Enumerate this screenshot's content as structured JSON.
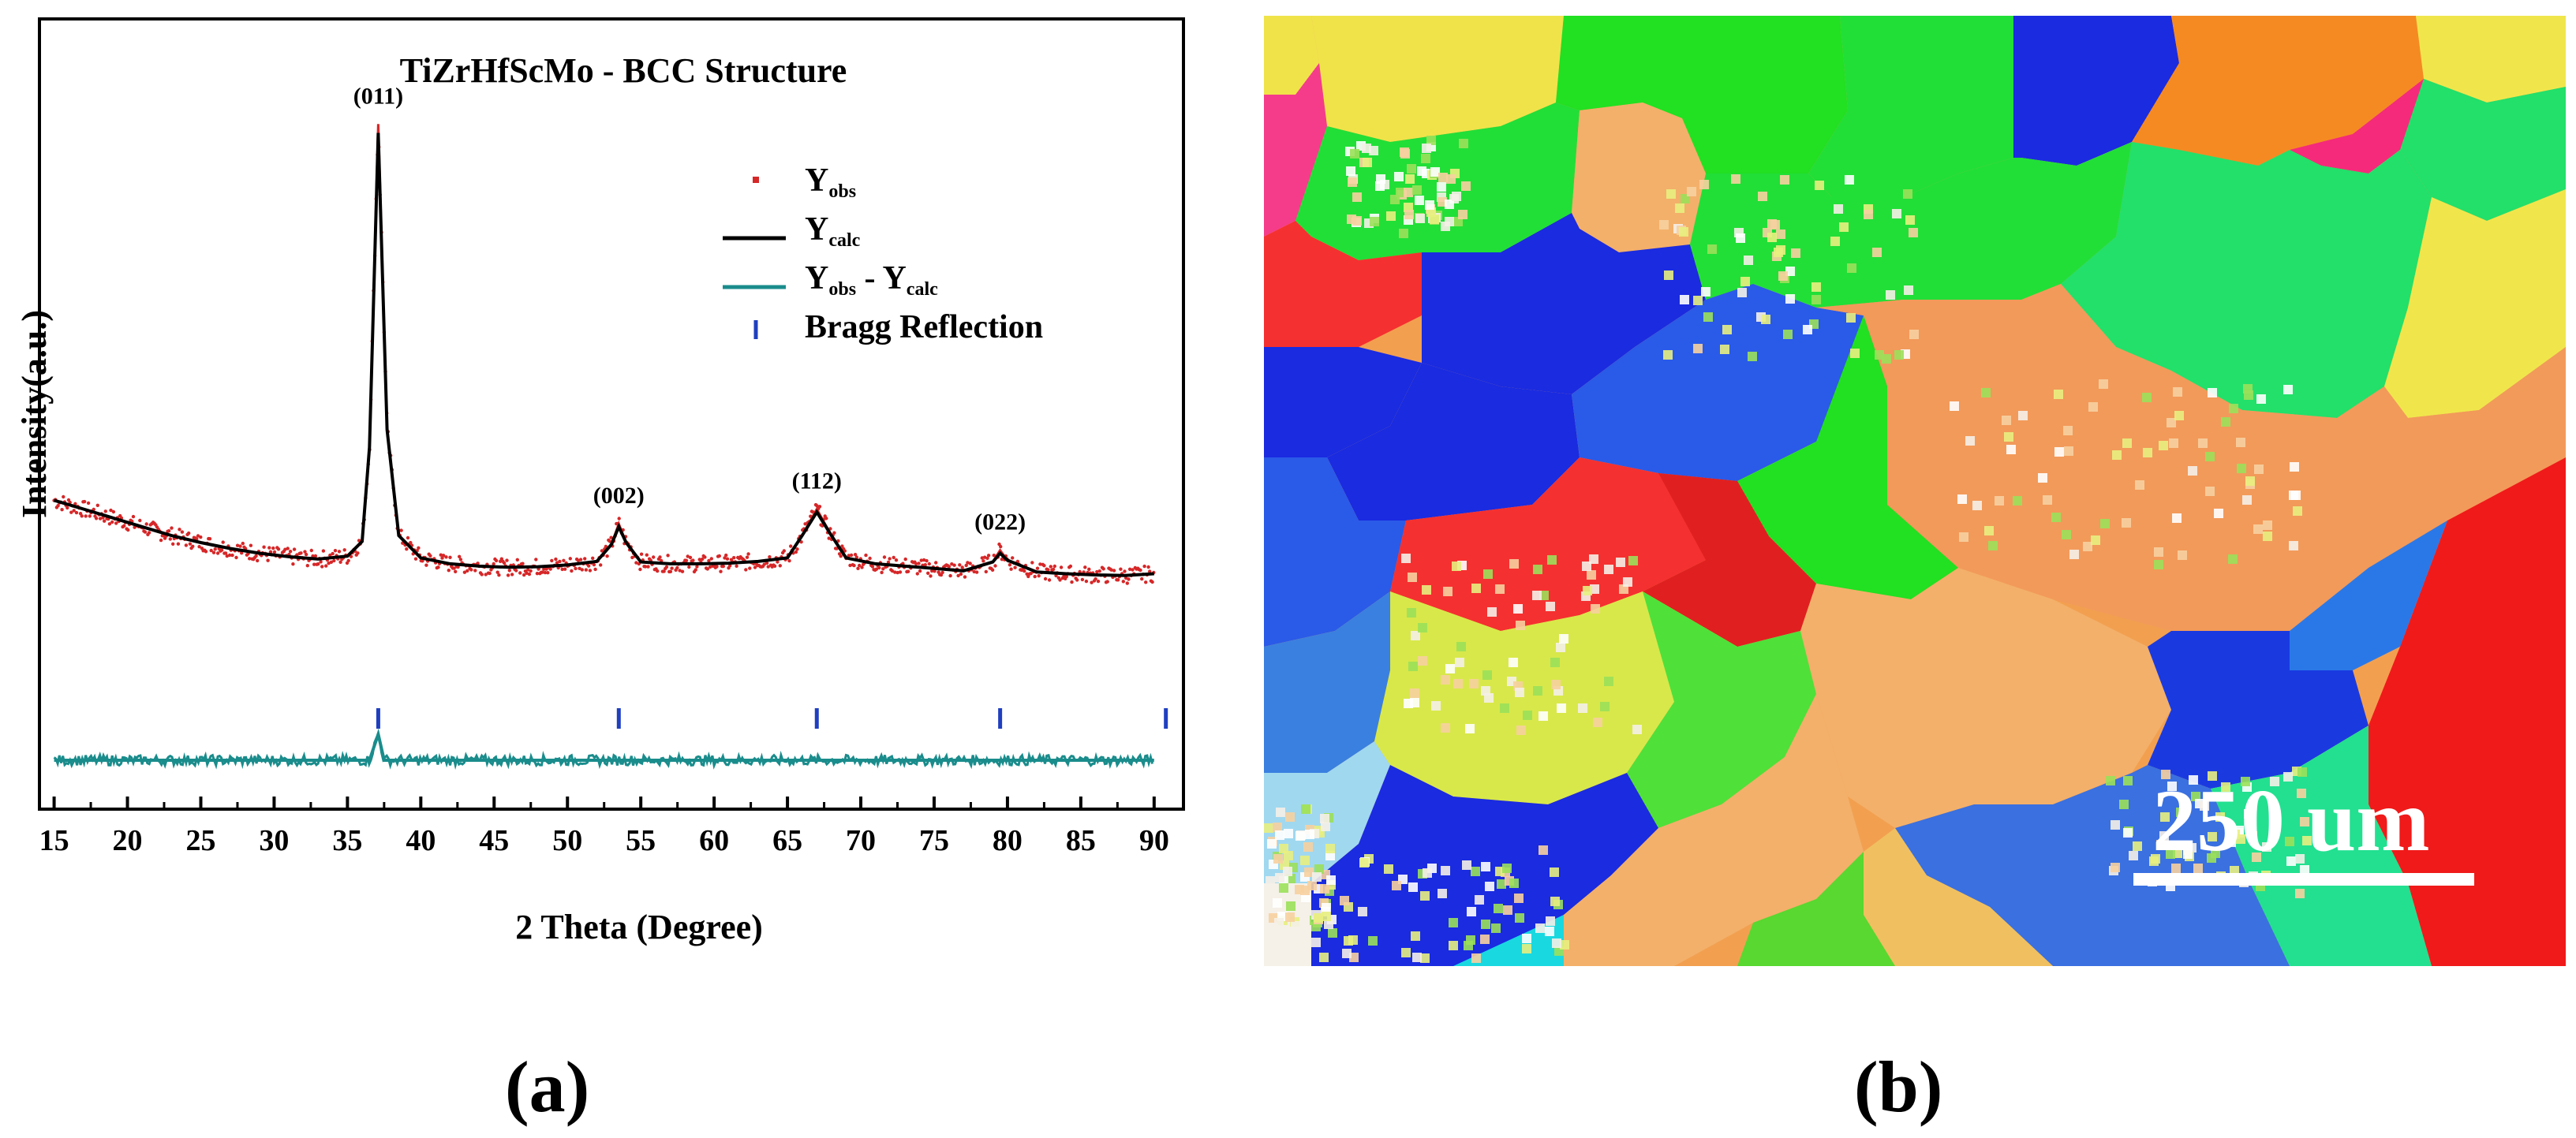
{
  "chart_data": {
    "type": "line",
    "title": "TiZrHfScMo - BCC Structure",
    "xlabel": "2 Theta (Degree)",
    "ylabel": "Intensity(a.u.)",
    "xlim": [
      14,
      92
    ],
    "ylim": [
      -50,
      1050
    ],
    "x_ticks": [
      15,
      20,
      25,
      30,
      35,
      40,
      45,
      50,
      55,
      60,
      65,
      70,
      75,
      80,
      85,
      90
    ],
    "legend": {
      "placement": "top-right",
      "entries": [
        {
          "main": "Y",
          "sub": "obs",
          "main2": "",
          "sub2": "",
          "symbol": "dot",
          "color": "#d62728"
        },
        {
          "main": "Y",
          "sub": "calc",
          "main2": "",
          "sub2": "",
          "symbol": "line",
          "color": "#000000"
        },
        {
          "main": "Y",
          "sub": "obs",
          "main2": " - Y",
          "sub2": "calc",
          "symbol": "line",
          "color": "#1a8c8c"
        },
        {
          "main": "Bragg Reflection",
          "sub": "",
          "main2": "",
          "sub2": "",
          "symbol": "tick",
          "color": "#1f3fbf"
        }
      ]
    },
    "peaks": [
      {
        "two_theta": 37.1,
        "intensity": 1000,
        "label": "(011)"
      },
      {
        "two_theta": 53.5,
        "intensity": 320,
        "label": "(002)"
      },
      {
        "two_theta": 67.0,
        "intensity": 345,
        "label": "(112)"
      },
      {
        "two_theta": 79.5,
        "intensity": 275,
        "label": "(022)"
      }
    ],
    "series": [
      {
        "name": "Y_obs",
        "x": [
          15,
          17,
          19,
          21,
          23,
          25,
          27,
          29,
          31,
          33,
          35,
          36,
          36.5,
          37.1,
          37.7,
          38.5,
          40,
          42,
          44,
          46,
          48,
          50,
          52,
          53,
          53.5,
          54,
          55,
          57,
          59,
          61,
          63,
          65,
          66,
          67,
          68,
          69,
          71,
          73,
          75,
          77,
          79,
          79.5,
          80,
          82,
          84,
          86,
          88,
          90
        ],
        "y": [
          360,
          345,
          330,
          315,
          300,
          288,
          278,
          270,
          264,
          260,
          265,
          290,
          450,
          1000,
          480,
          300,
          262,
          252,
          248,
          246,
          247,
          250,
          256,
          285,
          320,
          288,
          255,
          252,
          252,
          253,
          256,
          262,
          300,
          345,
          300,
          262,
          252,
          248,
          244,
          240,
          255,
          275,
          258,
          238,
          235,
          233,
          232,
          235
        ]
      },
      {
        "name": "Y_calc",
        "x": [
          15,
          17,
          19,
          21,
          23,
          25,
          27,
          29,
          31,
          33,
          35,
          36,
          36.5,
          37.1,
          37.7,
          38.5,
          40,
          42,
          44,
          46,
          48,
          50,
          52,
          53,
          53.5,
          54,
          55,
          57,
          59,
          61,
          63,
          65,
          66,
          67,
          68,
          69,
          71,
          73,
          75,
          77,
          79,
          79.5,
          80,
          82,
          84,
          86,
          88,
          90
        ],
        "y": [
          360,
          345,
          330,
          315,
          300,
          288,
          278,
          270,
          264,
          260,
          265,
          290,
          450,
          985,
          480,
          300,
          262,
          252,
          248,
          246,
          247,
          250,
          256,
          285,
          315,
          288,
          255,
          252,
          252,
          253,
          256,
          262,
          300,
          340,
          300,
          262,
          252,
          248,
          244,
          240,
          255,
          270,
          258,
          238,
          235,
          233,
          232,
          235
        ]
      },
      {
        "name": "Y_obs - Y_calc",
        "x": [
          15,
          36.5,
          37.1,
          37.5,
          90
        ],
        "y": [
          0,
          0,
          15,
          0,
          0
        ]
      }
    ],
    "bragg_reflections": [
      37.1,
      53.5,
      67.0,
      79.5,
      90.8
    ]
  },
  "ebsd_map": {
    "scale_label": "250 um"
  },
  "panel_labels": {
    "a": "(a)",
    "b": "(b)"
  }
}
